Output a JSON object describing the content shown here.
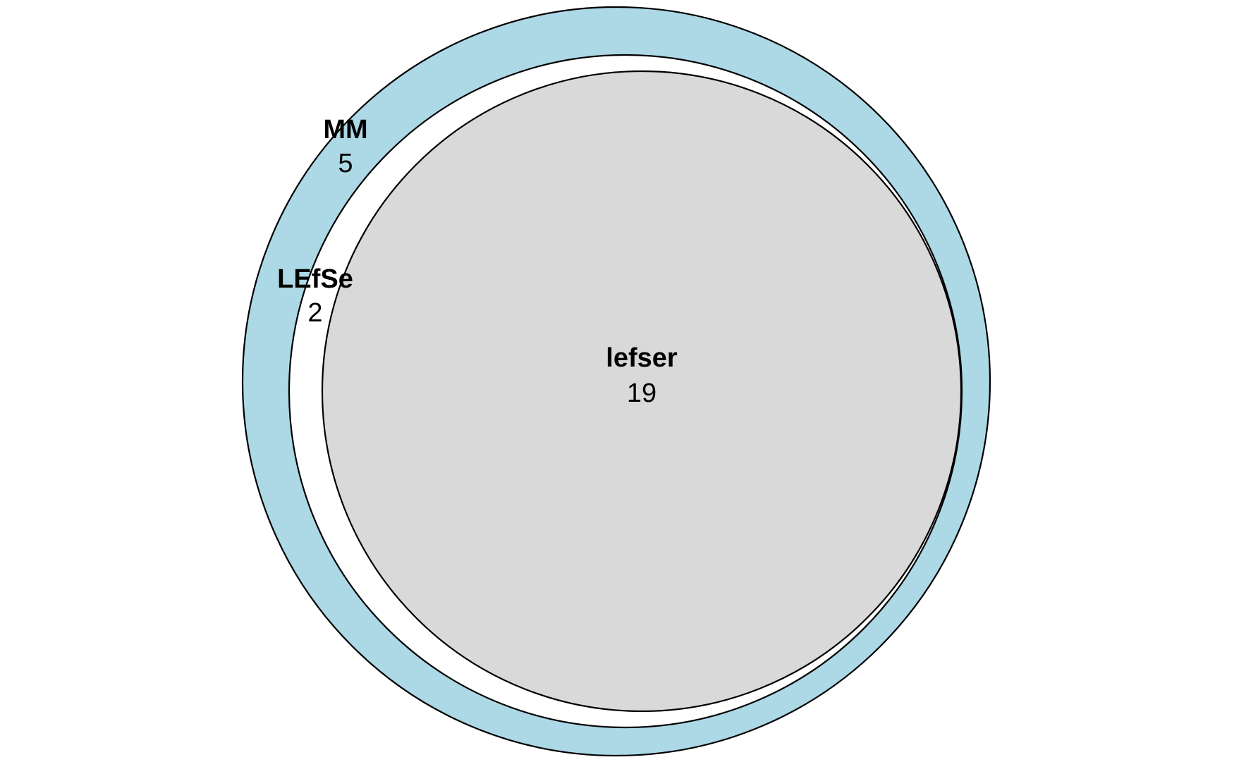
{
  "diagram": {
    "type": "euler-nested",
    "sets": [
      {
        "id": "mm",
        "name": "MM",
        "count": "5",
        "fill": "#ADD8E6"
      },
      {
        "id": "lefse",
        "name": "LEfSe",
        "count": "2",
        "fill": "#FFFFFF"
      },
      {
        "id": "lefser",
        "name": "lefser",
        "count": "19",
        "fill": "#D9D9D9"
      }
    ]
  }
}
